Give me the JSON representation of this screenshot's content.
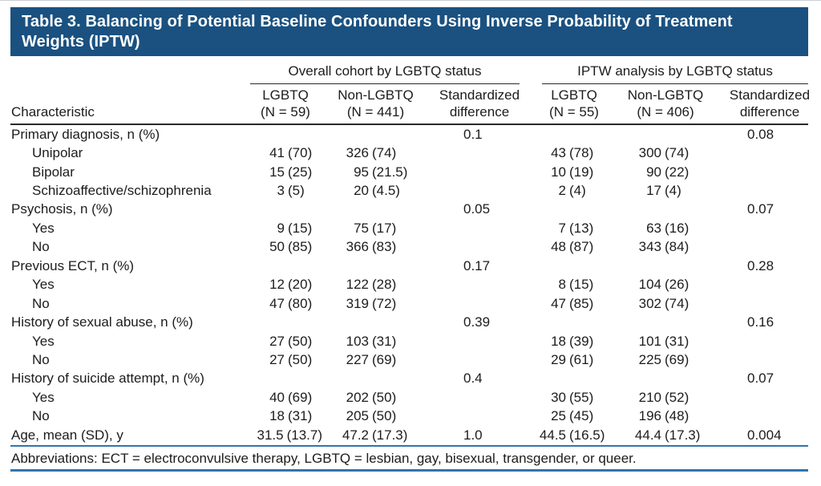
{
  "title": "Table 3. Balancing of Potential Baseline Confounders Using Inverse Probability of Treatment Weights (IPTW)",
  "colors": {
    "header_bg": "#1a5180",
    "rule_blue": "#3075ad",
    "hairline": "#c9ced6",
    "text": "#1d1c1b"
  },
  "table": {
    "group_headers": [
      "Overall cohort by LGBTQ status",
      "IPTW analysis by LGBTQ status"
    ],
    "characteristic_header": "Characteristic",
    "col_headers": [
      {
        "line1": "LGBTQ",
        "line2": "(N = 59)"
      },
      {
        "line1": "Non-LGBTQ",
        "line2": "(N = 441)"
      },
      {
        "line1": "Standardized",
        "line2": "difference"
      },
      {
        "line1": "LGBTQ",
        "line2": "(N = 55)"
      },
      {
        "line1": "Non-LGBTQ",
        "line2": "(N = 406)"
      },
      {
        "line1": "Standardized",
        "line2": "difference"
      }
    ],
    "rows": [
      {
        "label": "Primary diagnosis, n (%)",
        "indent": false,
        "cells": [
          "",
          "",
          "0.1",
          "",
          "",
          "0.08"
        ]
      },
      {
        "label": "Unipolar",
        "indent": true,
        "cells": [
          "41 (70)",
          "326 (74)",
          "",
          "43 (78)",
          "300 (74)",
          ""
        ]
      },
      {
        "label": "Bipolar",
        "indent": true,
        "cells": [
          "15 (25)",
          "95 (21.5)",
          "",
          "10 (19)",
          "90 (22)",
          ""
        ]
      },
      {
        "label": "Schizoaffective/schizophrenia",
        "indent": true,
        "cells": [
          "3 (5)",
          "20 (4.5)",
          "",
          "2 (4)",
          "17 (4)",
          ""
        ]
      },
      {
        "label": "Psychosis, n (%)",
        "indent": false,
        "cells": [
          "",
          "",
          "0.05",
          "",
          "",
          "0.07"
        ]
      },
      {
        "label": "Yes",
        "indent": true,
        "cells": [
          "9 (15)",
          "75 (17)",
          "",
          "7 (13)",
          "63 (16)",
          ""
        ]
      },
      {
        "label": "No",
        "indent": true,
        "cells": [
          "50 (85)",
          "366 (83)",
          "",
          "48 (87)",
          "343 (84)",
          ""
        ]
      },
      {
        "label": "Previous ECT, n (%)",
        "indent": false,
        "cells": [
          "",
          "",
          "0.17",
          "",
          "",
          "0.28"
        ]
      },
      {
        "label": "Yes",
        "indent": true,
        "cells": [
          "12 (20)",
          "122 (28)",
          "",
          "8 (15)",
          "104 (26)",
          ""
        ]
      },
      {
        "label": "No",
        "indent": true,
        "cells": [
          "47 (80)",
          "319 (72)",
          "",
          "47 (85)",
          "302 (74)",
          ""
        ]
      },
      {
        "label": "History of sexual abuse, n (%)",
        "indent": false,
        "cells": [
          "",
          "",
          "0.39",
          "",
          "",
          "0.16"
        ]
      },
      {
        "label": "Yes",
        "indent": true,
        "cells": [
          "27 (50)",
          "103 (31)",
          "",
          "18 (39)",
          "101 (31)",
          ""
        ]
      },
      {
        "label": "No",
        "indent": true,
        "cells": [
          "27 (50)",
          "227 (69)",
          "",
          "29 (61)",
          "225 (69)",
          ""
        ]
      },
      {
        "label": "History of suicide attempt, n (%)",
        "indent": false,
        "cells": [
          "",
          "",
          "0.4",
          "",
          "",
          "0.07"
        ]
      },
      {
        "label": "Yes",
        "indent": true,
        "cells": [
          "40 (69)",
          "202 (50)",
          "",
          "30 (55)",
          "210 (52)",
          ""
        ]
      },
      {
        "label": "No",
        "indent": true,
        "cells": [
          "18 (31)",
          "205 (50)",
          "",
          "25 (45)",
          "196 (48)",
          ""
        ]
      },
      {
        "label": "Age, mean (SD), y",
        "indent": false,
        "cells": [
          "31.5 (13.7)",
          "47.2 (17.3)",
          "1.0",
          "44.5 (16.5)",
          "44.4 (17.3)",
          "0.004"
        ]
      }
    ],
    "footnote": "Abbreviations: ECT = electroconvulsive therapy, LGBTQ = lesbian, gay, bisexual, transgender, or queer."
  }
}
